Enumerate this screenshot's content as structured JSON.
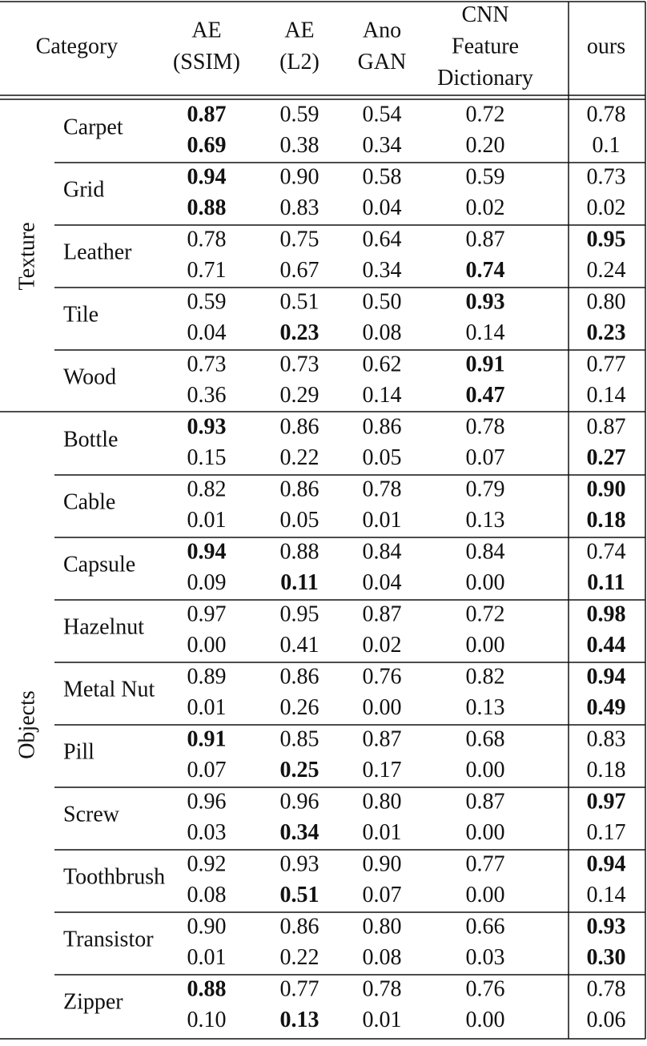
{
  "header": {
    "columns": [
      [
        "Category"
      ],
      [
        "AE",
        "(SSIM)"
      ],
      [
        "AE",
        "(L2)"
      ],
      [
        "Ano",
        "GAN"
      ],
      [
        "CNN",
        "Feature",
        "Dictionary"
      ],
      [
        "ours"
      ]
    ]
  },
  "groups": [
    {
      "label": "Texture",
      "categories": [
        {
          "name": "Carpet",
          "rows": [
            [
              "0.87",
              "0.59",
              "0.54",
              "0.72",
              "0.78"
            ],
            [
              "0.69",
              "0.38",
              "0.34",
              "0.20",
              "0.1"
            ]
          ],
          "bold": [
            [
              0
            ],
            [
              0
            ]
          ]
        },
        {
          "name": "Grid",
          "rows": [
            [
              "0.94",
              "0.90",
              "0.58",
              "0.59",
              "0.73"
            ],
            [
              "0.88",
              "0.83",
              "0.04",
              "0.02",
              "0.02"
            ]
          ],
          "bold": [
            [
              0
            ],
            [
              0
            ]
          ]
        },
        {
          "name": "Leather",
          "rows": [
            [
              "0.78",
              "0.75",
              "0.64",
              "0.87",
              "0.95"
            ],
            [
              "0.71",
              "0.67",
              "0.34",
              "0.74",
              "0.24"
            ]
          ],
          "bold": [
            [
              4
            ],
            [
              3
            ]
          ]
        },
        {
          "name": "Tile",
          "rows": [
            [
              "0.59",
              "0.51",
              "0.50",
              "0.93",
              "0.80"
            ],
            [
              "0.04",
              "0.23",
              "0.08",
              "0.14",
              "0.23"
            ]
          ],
          "bold": [
            [
              3
            ],
            [
              1,
              4
            ]
          ]
        },
        {
          "name": "Wood",
          "rows": [
            [
              "0.73",
              "0.73",
              "0.62",
              "0.91",
              "0.77"
            ],
            [
              "0.36",
              "0.29",
              "0.14",
              "0.47",
              "0.14"
            ]
          ],
          "bold": [
            [
              3
            ],
            [
              3
            ]
          ]
        }
      ]
    },
    {
      "label": "Objects",
      "categories": [
        {
          "name": "Bottle",
          "rows": [
            [
              "0.93",
              "0.86",
              "0.86",
              "0.78",
              "0.87"
            ],
            [
              "0.15",
              "0.22",
              "0.05",
              "0.07",
              "0.27"
            ]
          ],
          "bold": [
            [
              0
            ],
            [
              4
            ]
          ]
        },
        {
          "name": "Cable",
          "rows": [
            [
              "0.82",
              "0.86",
              "0.78",
              "0.79",
              "0.90"
            ],
            [
              "0.01",
              "0.05",
              "0.01",
              "0.13",
              "0.18"
            ]
          ],
          "bold": [
            [
              4
            ],
            [
              4
            ]
          ]
        },
        {
          "name": "Capsule",
          "rows": [
            [
              "0.94",
              "0.88",
              "0.84",
              "0.84",
              "0.74"
            ],
            [
              "0.09",
              "0.11",
              "0.04",
              "0.00",
              "0.11"
            ]
          ],
          "bold": [
            [
              0
            ],
            [
              1,
              4
            ]
          ]
        },
        {
          "name": "Hazelnut",
          "rows": [
            [
              "0.97",
              "0.95",
              "0.87",
              "0.72",
              "0.98"
            ],
            [
              "0.00",
              "0.41",
              "0.02",
              "0.00",
              "0.44"
            ]
          ],
          "bold": [
            [
              4
            ],
            [
              4
            ]
          ]
        },
        {
          "name": "Metal Nut",
          "rows": [
            [
              "0.89",
              "0.86",
              "0.76",
              "0.82",
              "0.94"
            ],
            [
              "0.01",
              "0.26",
              "0.00",
              "0.13",
              "0.49"
            ]
          ],
          "bold": [
            [
              4
            ],
            [
              4
            ]
          ]
        },
        {
          "name": "Pill",
          "rows": [
            [
              "0.91",
              "0.85",
              "0.87",
              "0.68",
              "0.83"
            ],
            [
              "0.07",
              "0.25",
              "0.17",
              "0.00",
              "0.18"
            ]
          ],
          "bold": [
            [
              0
            ],
            [
              1
            ]
          ]
        },
        {
          "name": "Screw",
          "rows": [
            [
              "0.96",
              "0.96",
              "0.80",
              "0.87",
              "0.97"
            ],
            [
              "0.03",
              "0.34",
              "0.01",
              "0.00",
              "0.17"
            ]
          ],
          "bold": [
            [
              4
            ],
            [
              1
            ]
          ]
        },
        {
          "name": "Toothbrush",
          "rows": [
            [
              "0.92",
              "0.93",
              "0.90",
              "0.77",
              "0.94"
            ],
            [
              "0.08",
              "0.51",
              "0.07",
              "0.00",
              "0.14"
            ]
          ],
          "bold": [
            [
              4
            ],
            [
              1
            ]
          ]
        },
        {
          "name": "Transistor",
          "rows": [
            [
              "0.90",
              "0.86",
              "0.80",
              "0.66",
              "0.93"
            ],
            [
              "0.01",
              "0.22",
              "0.08",
              "0.03",
              "0.30"
            ]
          ],
          "bold": [
            [
              4
            ],
            [
              4
            ]
          ]
        },
        {
          "name": "Zipper",
          "rows": [
            [
              "0.88",
              "0.77",
              "0.78",
              "0.76",
              "0.78"
            ],
            [
              "0.10",
              "0.13",
              "0.01",
              "0.00",
              "0.06"
            ]
          ],
          "bold": [
            [
              0
            ],
            [
              1
            ]
          ]
        }
      ]
    }
  ]
}
